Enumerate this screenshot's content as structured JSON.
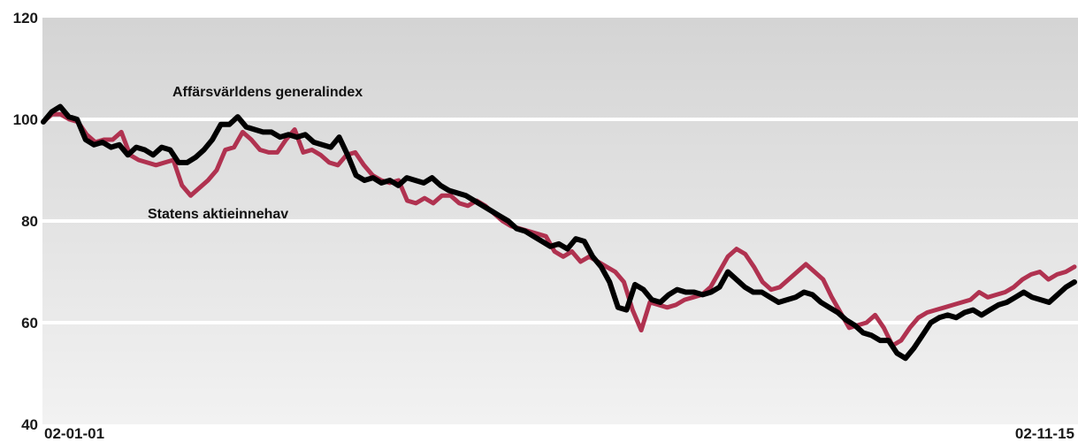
{
  "chart_data": {
    "type": "line",
    "title": "",
    "xlabel": "",
    "ylabel": "",
    "ylim": [
      40,
      120
    ],
    "yticks": [
      40,
      60,
      80,
      100,
      120
    ],
    "x_tick_labels": [
      "02-01-01",
      "02-11-15"
    ],
    "grid": true,
    "series": [
      {
        "name": "Affärsvärldens generalindex",
        "color": "#000000",
        "values": [
          99.5,
          101.5,
          102.5,
          100.5,
          100,
          96,
          95,
          95.5,
          94.5,
          95,
          93,
          94.5,
          94,
          93,
          94.5,
          94,
          91.5,
          91.5,
          92.5,
          94,
          96,
          99,
          99,
          100.5,
          98.5,
          98,
          97.5,
          97.5,
          96.5,
          97,
          96.5,
          97,
          95.5,
          95,
          94.5,
          96.5,
          93,
          89,
          88,
          88.5,
          87.5,
          88,
          87,
          88.5,
          88,
          87.5,
          88.5,
          87,
          86,
          85.5,
          85,
          84,
          83,
          82,
          81,
          80,
          78.5,
          78,
          77,
          76,
          75,
          75.5,
          74.5,
          76.5,
          76,
          73,
          71,
          68,
          63,
          62.5,
          67.5,
          66.5,
          64.5,
          64,
          65.5,
          66.5,
          66,
          66,
          65.5,
          66,
          67,
          70,
          68.5,
          67,
          66,
          66,
          65,
          64,
          64.5,
          65,
          66,
          65.5,
          64,
          63,
          62,
          60.5,
          59.5,
          58,
          57.5,
          56.5,
          56.5,
          54,
          53,
          55,
          57.5,
          60,
          61,
          61.5,
          61,
          62,
          62.5,
          61.5,
          62.5,
          63.5,
          64,
          65,
          66,
          65,
          64.5,
          64,
          65.5,
          67,
          68
        ]
      },
      {
        "name": "Statens aktieinnehav",
        "color": "#B03250",
        "values": [
          99.5,
          101,
          101,
          100,
          99.5,
          97,
          95.5,
          96,
          96,
          97.5,
          93,
          92,
          91.5,
          91,
          91.5,
          92,
          87,
          85,
          86.5,
          88,
          90,
          94,
          94.5,
          97.5,
          96,
          94,
          93.5,
          93.5,
          96,
          98,
          93.5,
          94,
          93,
          91.5,
          91,
          93,
          93.5,
          91,
          89,
          88,
          87.5,
          88,
          84,
          83.5,
          84.5,
          83.5,
          85,
          85,
          83.5,
          83,
          84,
          83,
          81.5,
          80,
          79,
          78.5,
          78,
          77.5,
          77,
          74,
          73,
          74,
          72,
          73,
          72,
          71,
          70,
          68,
          62.5,
          58.5,
          64,
          63.5,
          63,
          63.5,
          64.5,
          65,
          65.5,
          67,
          70,
          73,
          74.5,
          73.5,
          71,
          68,
          66.5,
          67,
          68.5,
          70,
          71.5,
          70,
          68.5,
          65,
          62,
          59,
          59.5,
          60,
          61.5,
          59,
          55.5,
          56.5,
          59,
          61,
          62,
          62.5,
          63,
          63.5,
          64,
          64.5,
          66,
          65,
          65.5,
          66,
          67,
          68.5,
          69.5,
          70,
          68.5,
          69.5,
          70,
          71
        ]
      }
    ],
    "annotations": [
      "Affärsvärldens generalindex",
      "Statens aktieinnehav"
    ]
  }
}
